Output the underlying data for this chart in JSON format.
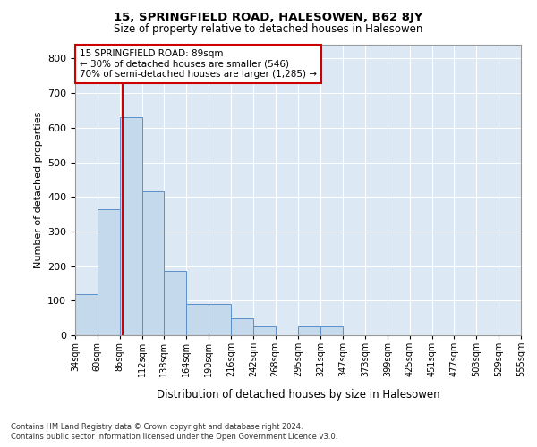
{
  "title": "15, SPRINGFIELD ROAD, HALESOWEN, B62 8JY",
  "subtitle": "Size of property relative to detached houses in Halesowen",
  "xlabel": "Distribution of detached houses by size in Halesowen",
  "ylabel": "Number of detached properties",
  "bar_color": "#c5d9ed",
  "bar_edge_color": "#5b8fc9",
  "plot_bg_color": "#dce9f5",
  "annotation_text": "15 SPRINGFIELD ROAD: 89sqm\n← 30% of detached houses are smaller (546)\n70% of semi-detached houses are larger (1,285) →",
  "annotation_box_color": "#ffffff",
  "annotation_box_edge": "#cc0000",
  "vline_x": 89,
  "vline_color": "#cc0000",
  "bin_edges": [
    34,
    60,
    86,
    112,
    138,
    164,
    190,
    216,
    242,
    268,
    295,
    321,
    347,
    373,
    399,
    425,
    451,
    477,
    503,
    529,
    555
  ],
  "bar_heights": [
    120,
    365,
    630,
    415,
    185,
    90,
    90,
    50,
    25,
    0,
    25,
    25,
    0,
    0,
    0,
    0,
    0,
    0,
    0,
    0
  ],
  "ylim": [
    0,
    840
  ],
  "yticks": [
    0,
    100,
    200,
    300,
    400,
    500,
    600,
    700,
    800
  ],
  "footer_line1": "Contains HM Land Registry data © Crown copyright and database right 2024.",
  "footer_line2": "Contains public sector information licensed under the Open Government Licence v3.0."
}
